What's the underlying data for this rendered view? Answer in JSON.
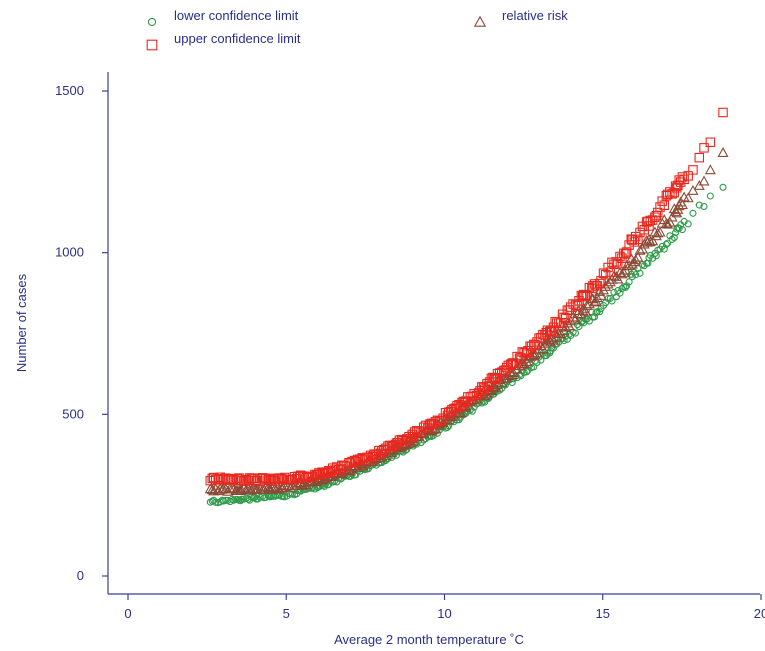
{
  "chart_data": {
    "type": "scatter",
    "title": "",
    "xlabel": "Average 2 month temperature ˚C",
    "ylabel": "Number of cases",
    "xlim": [
      0,
      20
    ],
    "ylim": [
      0,
      1500
    ],
    "x_ticks": [
      0,
      5,
      10,
      15,
      20
    ],
    "y_ticks": [
      0,
      500,
      1000,
      1500
    ],
    "grid": false,
    "legend_position": "top",
    "x_range_of_points": [
      2.6,
      18.8
    ],
    "series": [
      {
        "name": "lower confidence limit",
        "marker": "circle",
        "color": "#2e9a48",
        "points": [
          [
            2.6,
            230
          ],
          [
            3.0,
            232
          ],
          [
            4.0,
            240
          ],
          [
            5.0,
            250
          ],
          [
            6.0,
            275
          ],
          [
            7.0,
            310
          ],
          [
            8.0,
            355
          ],
          [
            9.0,
            405
          ],
          [
            10.0,
            460
          ],
          [
            11.0,
            525
          ],
          [
            12.0,
            595
          ],
          [
            13.0,
            670
          ],
          [
            14.0,
            750
          ],
          [
            15.0,
            835
          ],
          [
            16.0,
            930
          ],
          [
            17.0,
            1030
          ],
          [
            17.6,
            1090
          ],
          [
            18.3,
            1165
          ],
          [
            18.8,
            1205
          ]
        ]
      },
      {
        "name": "upper confidence limit",
        "marker": "square",
        "color": "#e8281e",
        "points": [
          [
            2.6,
            300
          ],
          [
            3.0,
            300
          ],
          [
            4.0,
            298
          ],
          [
            5.0,
            300
          ],
          [
            6.0,
            315
          ],
          [
            7.0,
            345
          ],
          [
            8.0,
            385
          ],
          [
            9.0,
            435
          ],
          [
            10.0,
            495
          ],
          [
            11.0,
            565
          ],
          [
            12.0,
            645
          ],
          [
            13.0,
            730
          ],
          [
            14.0,
            825
          ],
          [
            15.0,
            925
          ],
          [
            16.0,
            1040
          ],
          [
            17.0,
            1160
          ],
          [
            17.6,
            1235
          ],
          [
            18.3,
            1330
          ],
          [
            18.8,
            1425
          ]
        ]
      },
      {
        "name": "relative risk",
        "marker": "triangle",
        "color": "#8b4a36",
        "points": [
          [
            2.6,
            265
          ],
          [
            3.0,
            266
          ],
          [
            4.0,
            268
          ],
          [
            5.0,
            274
          ],
          [
            6.0,
            294
          ],
          [
            7.0,
            327
          ],
          [
            8.0,
            370
          ],
          [
            9.0,
            420
          ],
          [
            10.0,
            478
          ],
          [
            11.0,
            545
          ],
          [
            12.0,
            620
          ],
          [
            13.0,
            700
          ],
          [
            14.0,
            788
          ],
          [
            15.0,
            880
          ],
          [
            16.0,
            985
          ],
          [
            17.0,
            1095
          ],
          [
            17.6,
            1160
          ],
          [
            18.3,
            1245
          ],
          [
            18.8,
            1310
          ]
        ]
      }
    ]
  }
}
